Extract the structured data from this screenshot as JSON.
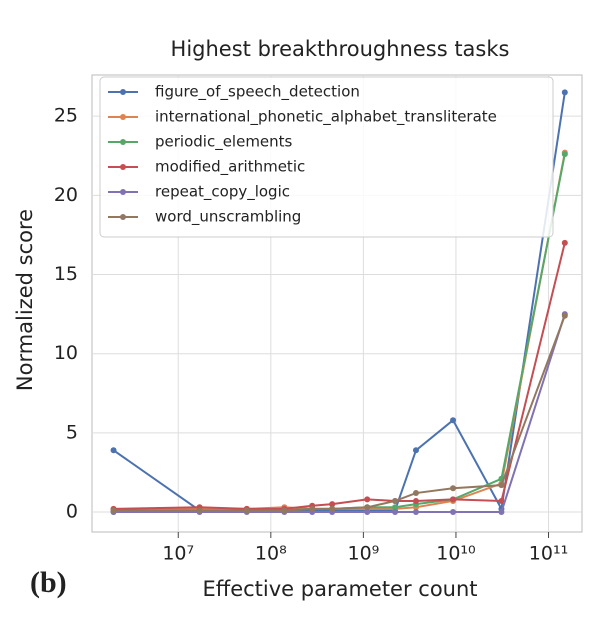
{
  "chart_data": {
    "type": "line",
    "title": "Highest breakthroughness tasks",
    "xlabel": "Effective parameter count",
    "ylabel": "Normalized score",
    "panel_label": "(b)",
    "x": [
      2000000,
      17000000,
      55000000,
      140000000,
      280000000,
      460000000,
      1100000000,
      2200000000,
      3700000000,
      9300000000,
      31000000000,
      150000000000
    ],
    "series": [
      {
        "name": "figure_of_speech_detection",
        "color": "#4c72b0",
        "values": [
          3.9,
          0.1,
          0.05,
          0.1,
          0.1,
          0.1,
          0.1,
          0.1,
          3.9,
          5.8,
          0.2,
          26.5
        ]
      },
      {
        "name": "international_phonetic_alphabet_transliterate",
        "color": "#dd8452",
        "values": [
          0.1,
          0.2,
          0.2,
          0.3,
          0.2,
          0.2,
          0.2,
          0.2,
          0.3,
          0.7,
          1.8,
          22.7
        ]
      },
      {
        "name": "periodic_elements",
        "color": "#55a868",
        "values": [
          0.0,
          0.1,
          0.1,
          0.1,
          0.2,
          0.2,
          0.3,
          0.3,
          0.5,
          0.8,
          2.1,
          22.6
        ]
      },
      {
        "name": "modified_arithmetic",
        "color": "#c44e52",
        "values": [
          0.2,
          0.3,
          0.2,
          0.2,
          0.4,
          0.5,
          0.8,
          0.7,
          0.7,
          0.8,
          0.7,
          17.0
        ]
      },
      {
        "name": "repeat_copy_logic",
        "color": "#8172b3",
        "values": [
          0,
          0,
          0,
          0,
          0,
          0,
          0,
          0,
          0,
          0,
          0,
          12.5
        ]
      },
      {
        "name": "word_unscrambling",
        "color": "#937860",
        "values": [
          0.1,
          0.1,
          0.1,
          0.1,
          0.2,
          0.2,
          0.3,
          0.7,
          1.2,
          1.5,
          1.7,
          12.4
        ]
      }
    ],
    "xscale": "log",
    "xlim": [
      1170000,
      230000000000
    ],
    "xticks": [
      {
        "value": 10000000,
        "label": "10⁷"
      },
      {
        "value": 100000000,
        "label": "10⁸"
      },
      {
        "value": 1000000000,
        "label": "10⁹"
      },
      {
        "value": 10000000000,
        "label": "10¹⁰"
      },
      {
        "value": 100000000000,
        "label": "10¹¹"
      }
    ],
    "ylim": [
      -1.26,
      27.6
    ],
    "yticks": [
      0,
      5,
      10,
      15,
      20,
      25
    ],
    "grid": true,
    "legend": "upper-left"
  }
}
